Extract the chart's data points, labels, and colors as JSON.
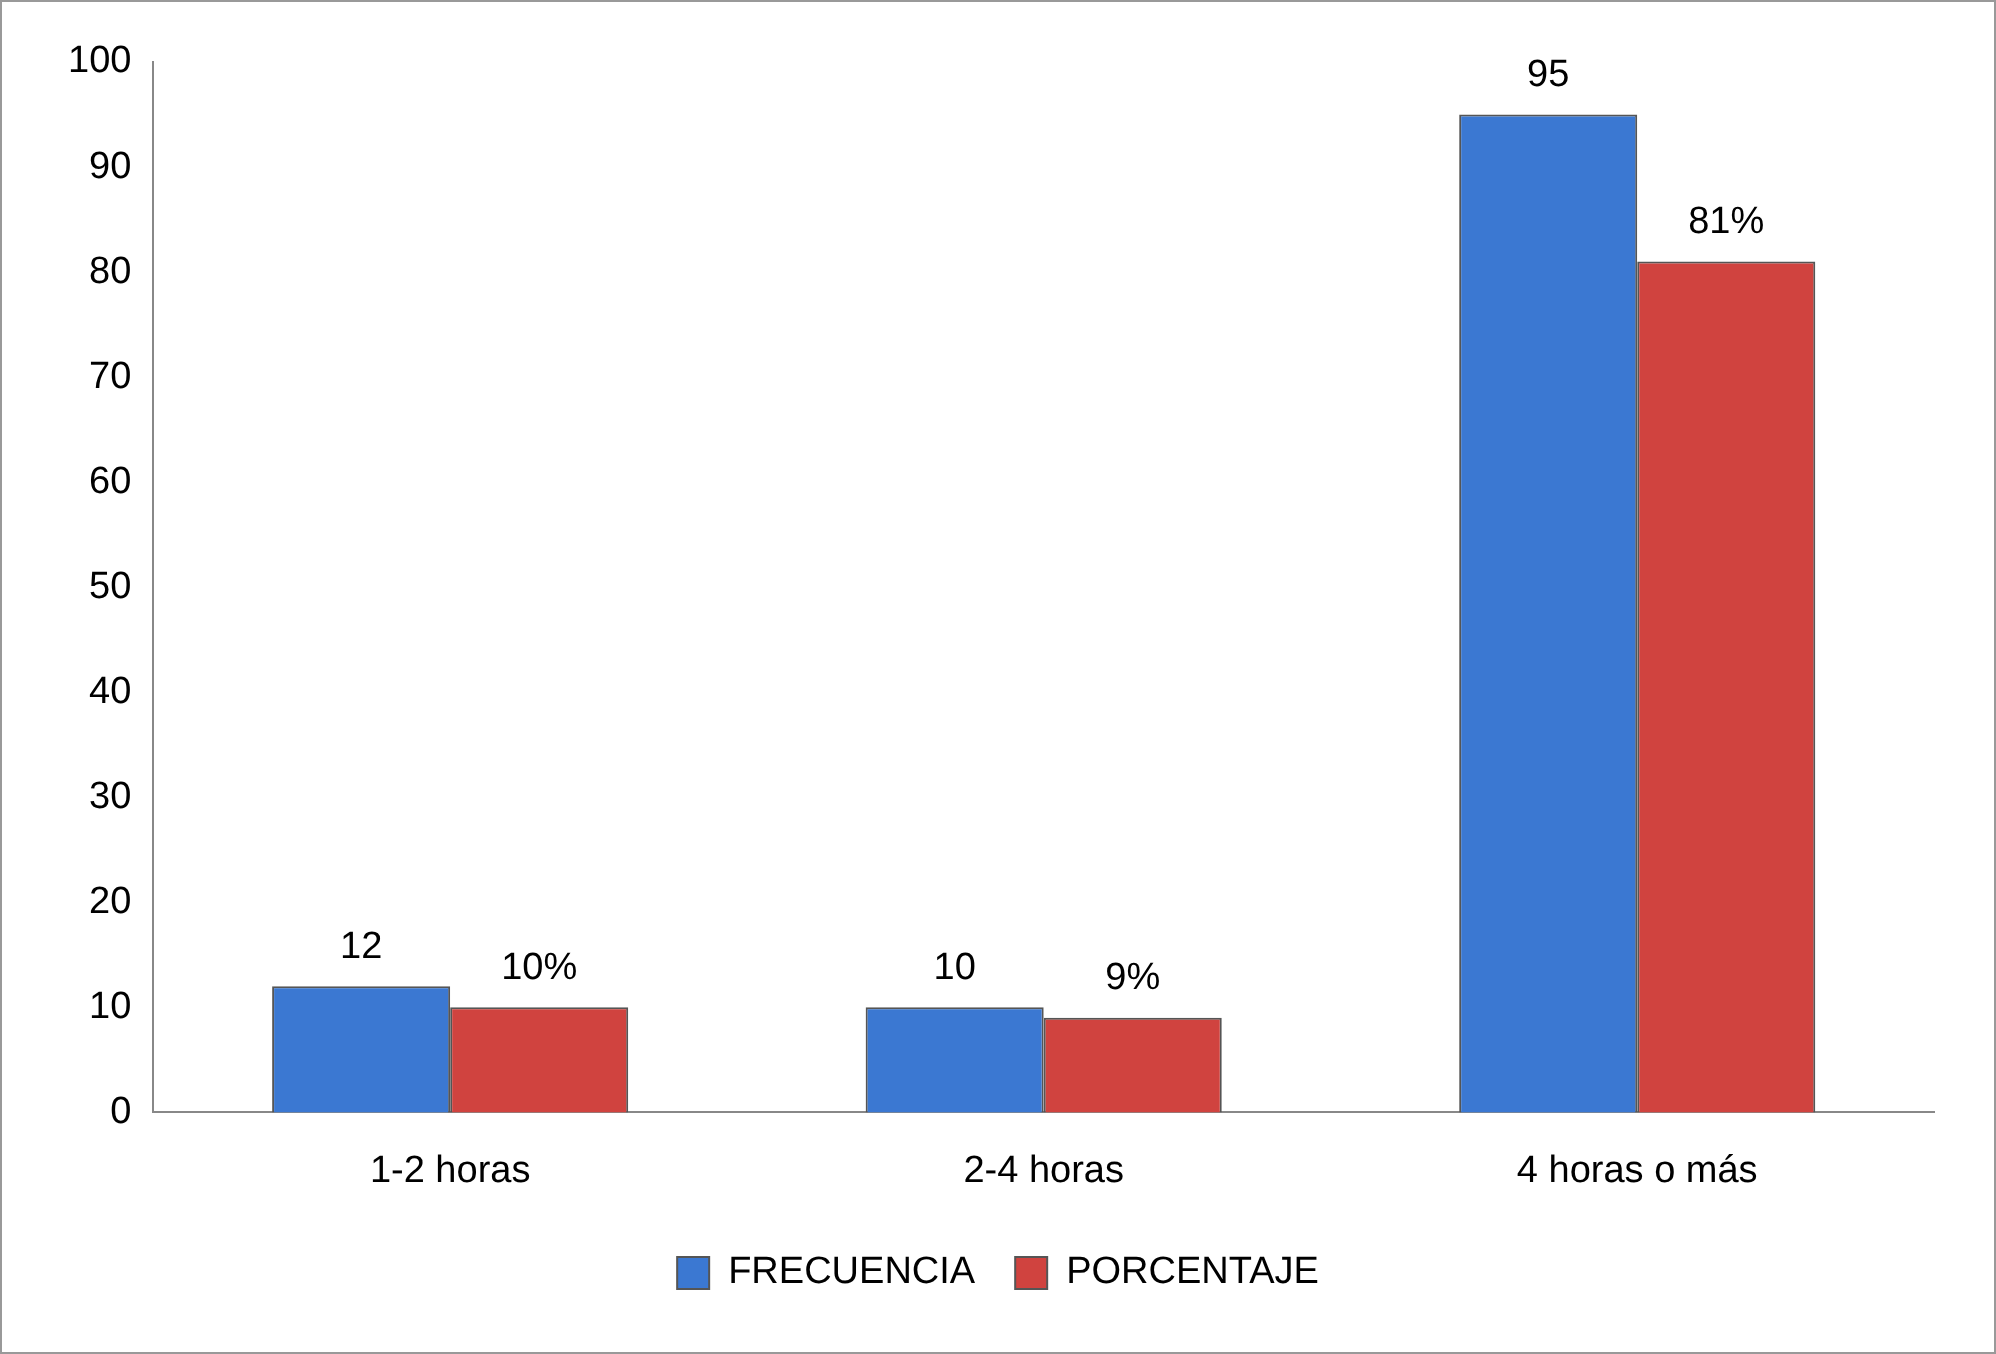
{
  "chart_data": {
    "type": "bar",
    "categories": [
      "1-2 horas",
      "2-4 horas",
      "4 horas o más"
    ],
    "series": [
      {
        "name": "FRECUENCIA",
        "color": "#3b78d2",
        "values": [
          12,
          10,
          95
        ],
        "value_labels": [
          "12",
          "10",
          "95"
        ]
      },
      {
        "name": "PORCENTAJE",
        "color": "#d0433f",
        "values": [
          10,
          9,
          81
        ],
        "value_labels": [
          "10%",
          "9%",
          "81%"
        ]
      }
    ],
    "ylim": [
      0,
      100
    ],
    "yticks": [
      0,
      10,
      20,
      30,
      40,
      50,
      60,
      70,
      80,
      90,
      100
    ],
    "grid": false,
    "legend": "bottom"
  }
}
